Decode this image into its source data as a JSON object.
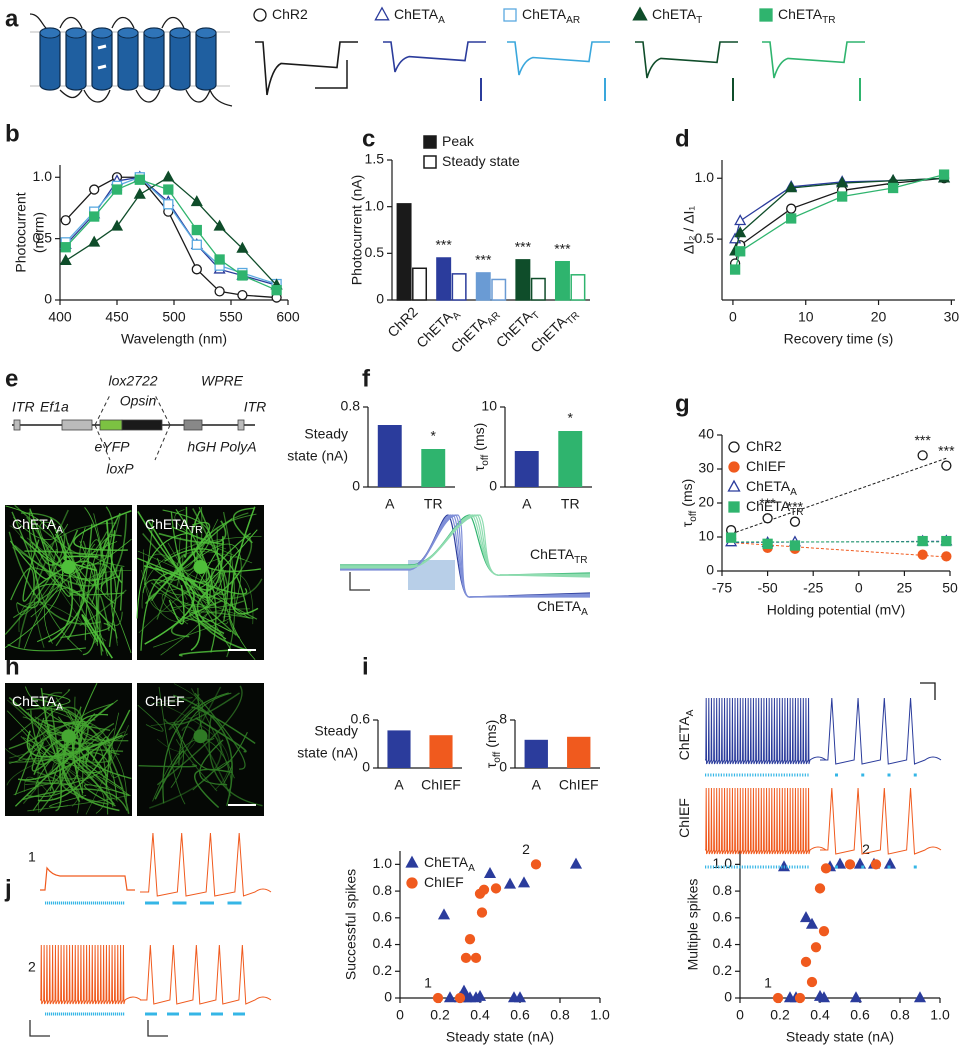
{
  "panel_labels": [
    "a",
    "b",
    "c",
    "d",
    "e",
    "f",
    "g",
    "h",
    "i",
    "j"
  ],
  "panel_e": {
    "construct_labels": [
      "ITR",
      "Ef1a",
      "lox2722",
      "Opsin",
      "WPRE",
      "ITR",
      "eYFP",
      "hGH PolyA",
      "loxP"
    ],
    "images": [
      {
        "text": "ChETA",
        "sub": "A"
      },
      {
        "text": "ChETA",
        "sub": "TR"
      }
    ]
  },
  "panel_f": {
    "trace_labels": [
      {
        "text": "ChETA",
        "sub": "TR"
      },
      {
        "text": "ChETA",
        "sub": "A"
      }
    ]
  },
  "panel_h": {
    "images": [
      {
        "text": "ChETA",
        "sub": "A"
      },
      {
        "text": "ChIEF"
      }
    ]
  },
  "panel_i": {
    "trace_labels": [
      {
        "text": "ChETA",
        "sub": "A"
      },
      {
        "text": "ChIEF"
      }
    ]
  },
  "panel_j": {
    "trace_labels": [
      "1",
      "2"
    ]
  },
  "chart_data": [
    {
      "type": "line",
      "x_label": "Wavelength (nm)",
      "y_label": [
        "Photocurrent",
        "(norm)"
      ],
      "x": [
        405,
        430,
        450,
        470,
        495,
        520,
        540,
        560,
        590
      ],
      "xlim": [
        400,
        600
      ],
      "xticks": [
        400,
        450,
        500,
        550,
        600
      ],
      "ylim": [
        0,
        1.1
      ],
      "yticks": [
        0,
        0.5,
        {
          "value": 1,
          "label": "1.0"
        }
      ],
      "series": [
        {
          "name": "ChR2",
          "color": "#1a1a1a",
          "marker": "circle-open",
          "values": [
            0.65,
            0.9,
            1.0,
            1.0,
            0.72,
            0.25,
            0.07,
            0.04,
            0.02
          ]
        },
        {
          "name": "ChETA",
          "subscript": "A",
          "color": "#2b3c9c",
          "marker": "triangle-open",
          "values": [
            0.45,
            0.7,
            0.97,
            1.0,
            0.8,
            0.45,
            0.25,
            0.2,
            0.12
          ]
        },
        {
          "name": "ChETA",
          "subscript": "AR",
          "color": "#5aa9e0",
          "marker": "square-open",
          "values": [
            0.47,
            0.72,
            0.93,
            1.0,
            0.78,
            0.45,
            0.28,
            0.22,
            0.13
          ]
        },
        {
          "name": "ChETA",
          "subscript": "T",
          "color": "#0f4d2a",
          "marker": "triangle",
          "values": [
            0.32,
            0.47,
            0.6,
            0.86,
            1.0,
            0.8,
            0.6,
            0.42,
            0.12
          ]
        },
        {
          "name": "ChETA",
          "subscript": "TR",
          "color": "#2fb46e",
          "marker": "square",
          "values": [
            0.43,
            0.68,
            0.9,
            0.98,
            0.9,
            0.57,
            0.33,
            0.2,
            0.08
          ]
        }
      ]
    },
    {
      "type": "bar",
      "y_label": "Photocurrent (nA)",
      "categories": [
        "ChR2",
        "ChETA",
        "ChETA",
        "ChETA",
        "ChETA"
      ],
      "category_subscripts": [
        null,
        "A",
        "AR",
        "T",
        "TR"
      ],
      "category_colors": [
        "#1a1a1a",
        "#2b3c9c",
        "#6a9bd4",
        "#0f4d2a",
        "#2fb46e"
      ],
      "ylim": [
        0,
        1.5
      ],
      "yticks": [
        0,
        0.5,
        {
          "value": 1,
          "label": "1.0"
        },
        1.5
      ],
      "legend": "upper right",
      "series": [
        {
          "name": "Peak",
          "style": "filled",
          "values": [
            1.03,
            0.45,
            0.29,
            0.43,
            0.41
          ]
        },
        {
          "name": "Steady state",
          "style": "outline",
          "values": [
            0.34,
            0.28,
            0.22,
            0.23,
            0.27
          ]
        }
      ],
      "value_annotations": [
        null,
        "***",
        "***",
        "***",
        "***"
      ]
    },
    {
      "type": "line",
      "x_label": "Recovery time (s)",
      "y_label": "ΔI₂ / ΔI₁",
      "x": [
        0.3,
        1,
        8,
        15,
        22,
        29
      ],
      "xlim": [
        -1.5,
        30.5
      ],
      "xticks": [
        0,
        10,
        20,
        30
      ],
      "ylim": [
        0,
        1.15
      ],
      "yticks": [
        0.5,
        {
          "value": 1,
          "label": "1.0"
        }
      ],
      "series": [
        {
          "color": "#1a1a1a",
          "marker": "circle-open",
          "values": [
            0.3,
            0.45,
            0.75,
            0.9,
            0.96,
            1.0
          ]
        },
        {
          "color": "#2b3c9c",
          "marker": "triangle-open",
          "values": [
            0.5,
            0.65,
            0.93,
            0.97,
            0.98,
            1.0
          ]
        },
        {
          "color": "#0f4d2a",
          "marker": "triangle",
          "values": [
            0.4,
            0.55,
            0.92,
            0.96,
            0.98,
            1.0
          ]
        },
        {
          "color": "#2fb46e",
          "marker": "square",
          "values": [
            0.25,
            0.4,
            0.67,
            0.85,
            0.92,
            1.03
          ]
        }
      ]
    },
    {
      "type": "bar",
      "y_label": [
        "Steady",
        "state (nA)"
      ],
      "y_label_horizontal": true,
      "categories": [
        "A",
        "TR"
      ],
      "colors": [
        "#2b3c9c",
        "#2fb46e"
      ],
      "values": [
        0.62,
        0.38
      ],
      "ylim": [
        0,
        0.8
      ],
      "yticks": [
        0,
        0.8
      ],
      "value_annotations": [
        null,
        "*"
      ]
    },
    {
      "type": "bar",
      "y_label": {
        "text": "τ",
        "sub": "off",
        "unit": "(ms)"
      },
      "categories": [
        "A",
        "TR"
      ],
      "colors": [
        "#2b3c9c",
        "#2fb46e"
      ],
      "values": [
        4.5,
        7.0
      ],
      "ylim": [
        0,
        10
      ],
      "yticks": [
        0,
        10
      ],
      "value_annotations": [
        null,
        "*"
      ]
    },
    {
      "type": "line",
      "connect": false,
      "fit": "linear",
      "x_label": "Holding potential (mV)",
      "y_label": {
        "text": "τ",
        "sub": "off",
        "unit": "(ms)"
      },
      "x": [
        -70,
        -50,
        -35,
        35,
        48
      ],
      "xlim": [
        -75,
        50
      ],
      "xticks": [
        -75,
        -50,
        -25,
        0,
        25,
        50
      ],
      "ylim": [
        0,
        40
      ],
      "yticks": [
        0,
        10,
        20,
        30,
        40
      ],
      "legend": "upper left",
      "series": [
        {
          "name": "ChR2",
          "color": "#1a1a1a",
          "marker": "circle-open",
          "values": [
            12,
            15.5,
            14.5,
            34,
            31
          ],
          "point_annotations": [
            null,
            "***",
            "***",
            "***",
            "***"
          ]
        },
        {
          "name": "ChIEF",
          "color": "#f05a1e",
          "marker": "circle",
          "values": [
            9.5,
            6.8,
            6.5,
            4.8,
            4.3
          ]
        },
        {
          "name": "ChETA",
          "subscript": "A",
          "color": "#2b3c9c",
          "marker": "triangle-open",
          "values": [
            8.5,
            8.3,
            8.5,
            8.7,
            8.8
          ]
        },
        {
          "name": "ChETA",
          "subscript": "TR",
          "color": "#2fb46e",
          "marker": "square",
          "values": [
            9.8,
            8,
            7.5,
            8.8,
            8.8
          ]
        }
      ]
    },
    {
      "type": "bar",
      "y_label": [
        "Steady",
        "state (nA)"
      ],
      "y_label_horizontal": true,
      "categories": [
        "A",
        "ChIEF"
      ],
      "colors": [
        "#2b3c9c",
        "#f05a1e"
      ],
      "values": [
        0.47,
        0.41
      ],
      "ylim": [
        0,
        0.6
      ],
      "yticks": [
        0,
        0.6
      ]
    },
    {
      "type": "bar",
      "y_label": {
        "text": "τ",
        "sub": "off",
        "unit": "(ms)"
      },
      "categories": [
        "A",
        "ChIEF"
      ],
      "colors": [
        "#2b3c9c",
        "#f05a1e"
      ],
      "values": [
        4.7,
        5.2
      ],
      "ylim": [
        0,
        8
      ],
      "yticks": [
        0,
        8
      ]
    },
    {
      "type": "scatter",
      "x_label": "Steady state (nA)",
      "y_label": "Successful spikes",
      "xlim": [
        0,
        1
      ],
      "xticks": [
        0,
        0.2,
        0.4,
        0.6,
        0.8,
        {
          "value": 1,
          "label": "1.0"
        }
      ],
      "ylim": [
        0,
        1.1
      ],
      "yticks": [
        0,
        0.2,
        0.4,
        0.6,
        0.8,
        {
          "value": 1,
          "label": "1.0"
        }
      ],
      "legend": "upper left",
      "series": [
        {
          "name": "ChETA",
          "subscript": "A",
          "color": "#2b3c9c",
          "marker": "triangle",
          "x": [
            0.22,
            0.25,
            0.3,
            0.32,
            0.33,
            0.35,
            0.38,
            0.4,
            0.45,
            0.55,
            0.57,
            0.6,
            0.62,
            0.88
          ],
          "values": [
            0.62,
            0,
            0,
            0.05,
            0,
            0,
            0,
            0.01,
            0.93,
            0.85,
            0,
            0,
            0.86,
            1.0
          ]
        },
        {
          "name": "ChIEF",
          "color": "#f05a1e",
          "marker": "circle",
          "x": [
            0.19,
            0.3,
            0.33,
            0.35,
            0.38,
            0.4,
            0.41,
            0.42,
            0.48,
            0.68
          ],
          "values": [
            0,
            0,
            0.3,
            0.44,
            0.3,
            0.78,
            0.64,
            0.81,
            0.82,
            1.0
          ],
          "point_labels": [
            "1",
            null,
            null,
            null,
            null,
            null,
            null,
            null,
            null,
            "2"
          ]
        }
      ]
    },
    {
      "type": "scatter",
      "x_label": "Steady state (nA)",
      "y_label": "Multiple spikes",
      "xlim": [
        0,
        1
      ],
      "xticks": [
        0,
        0.2,
        0.4,
        0.6,
        0.8,
        {
          "value": 1,
          "label": "1.0"
        }
      ],
      "ylim": [
        0,
        1.1
      ],
      "yticks": [
        0,
        0.2,
        0.4,
        0.6,
        0.8,
        {
          "value": 1,
          "label": "1.0"
        }
      ],
      "series": [
        {
          "color": "#2b3c9c",
          "marker": "triangle",
          "x": [
            0.22,
            0.25,
            0.28,
            0.33,
            0.36,
            0.4,
            0.42,
            0.45,
            0.5,
            0.58,
            0.6,
            0.67,
            0.75,
            0.9
          ],
          "values": [
            0.98,
            0,
            0,
            0.6,
            0.55,
            0.01,
            0,
            0.98,
            1.0,
            0,
            1.0,
            1.0,
            1.0,
            0
          ]
        },
        {
          "color": "#f05a1e",
          "marker": "circle",
          "x": [
            0.19,
            0.3,
            0.33,
            0.36,
            0.38,
            0.4,
            0.42,
            0.43,
            0.55,
            0.68
          ],
          "values": [
            0,
            0,
            0.27,
            0.12,
            0.38,
            0.82,
            0.5,
            0.97,
            1.0,
            1.0
          ],
          "point_labels": [
            "1",
            null,
            null,
            null,
            null,
            null,
            null,
            null,
            null,
            "2"
          ]
        }
      ]
    }
  ]
}
